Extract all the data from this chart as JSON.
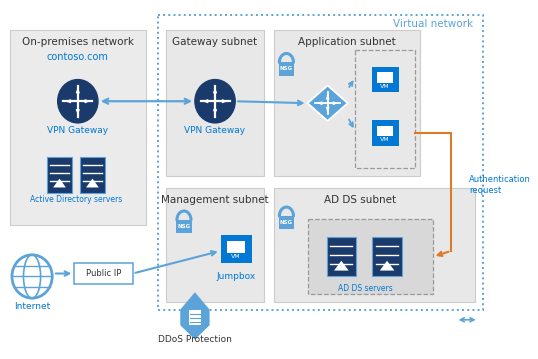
{
  "bg_color": "#ffffff",
  "light_blue": "#5ba3d9",
  "dark_blue": "#1a3a6b",
  "mid_blue": "#0078d4",
  "orange": "#d97c2b",
  "gray_box": "#e8e8e8",
  "gray_border": "#c0c0c0",
  "text_dark": "#333333",
  "text_blue": "#0078d4",
  "labels": {
    "on_prem": "On-premises network",
    "gateway": "Gateway subnet",
    "app": "Application subnet",
    "virtual_net": "Virtual network",
    "mgmt": "Management subnet",
    "adds": "AD DS subnet",
    "vpn_onprem": "VPN Gateway",
    "vpn_gw": "VPN Gateway",
    "ad_servers": "Active Directory servers",
    "contoso": "contoso.com",
    "internet": "Internet",
    "ddos": "DDoS Protection",
    "jumpbox": "Jumpbox",
    "adds_servers": "AD DS servers",
    "pubip": "Public IP",
    "auth": "Authentication\nrequest",
    "vm": "VM"
  }
}
